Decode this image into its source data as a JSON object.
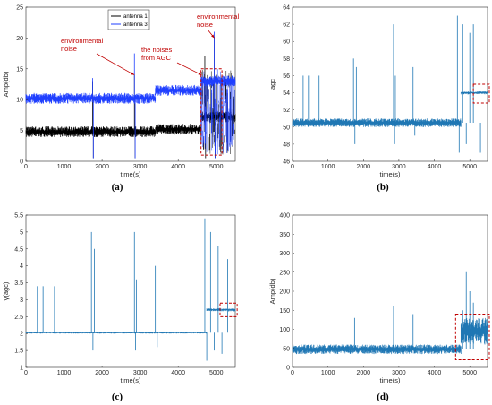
{
  "figure": {
    "panels": [
      {
        "id": "a",
        "label": "(a)"
      },
      {
        "id": "b",
        "label": "(b)"
      },
      {
        "id": "c",
        "label": "(c)"
      },
      {
        "id": "d",
        "label": "(d)"
      }
    ]
  },
  "colors": {
    "blue": "#1f3fff",
    "black": "#000000",
    "matlab_blue": "#1f77b4",
    "annotation": "#c00000",
    "axes": "#262626"
  },
  "chart_data": [
    {
      "type": "line",
      "panel": "(a)",
      "xlabel": "time(s)",
      "ylabel": "Amp(db)",
      "xlim": [
        0,
        5500
      ],
      "ylim": [
        0,
        25
      ],
      "xticks": [
        0,
        1000,
        2000,
        3000,
        4000,
        5000
      ],
      "yticks": [
        0,
        5,
        10,
        15,
        20,
        25
      ],
      "grid": false,
      "legend": {
        "placement": "top-right",
        "entries": [
          "antenna 1",
          "antenna 3"
        ]
      },
      "series": [
        {
          "name": "antenna 1",
          "color": "#000000",
          "segments": [
            {
              "x": [
                0,
                3400
              ],
              "y": 4.8
            },
            {
              "x": [
                3400,
                4600
              ],
              "y": 5.2
            },
            {
              "x": [
                4600,
                5500
              ],
              "y": 7.2
            }
          ],
          "spikes": [
            {
              "x": 1750,
              "y": 13
            },
            {
              "x": 2850,
              "y": 14
            },
            {
              "x": 4700,
              "y": 17
            },
            {
              "x": 4950,
              "y": 20
            }
          ]
        },
        {
          "name": "antenna 3",
          "color": "#1f3fff",
          "segments": [
            {
              "x": [
                0,
                3400
              ],
              "y": 10.2
            },
            {
              "x": [
                3400,
                4600
              ],
              "y": 11.5
            },
            {
              "x": [
                4600,
                5500
              ],
              "y": 13.0
            }
          ],
          "spikes": [
            {
              "x": 1750,
              "y": 13.5
            },
            {
              "x": 2850,
              "y": 17.5
            },
            {
              "x": 4950,
              "y": 21
            }
          ]
        }
      ],
      "annotations": [
        {
          "text": [
            "environmental",
            "noise"
          ],
          "target": {
            "x": 2850,
            "y": 14
          }
        },
        {
          "text": [
            "the noises",
            "from AGC"
          ],
          "target": {
            "x": 4620,
            "y": 14
          }
        },
        {
          "text": [
            "environmental",
            "noise"
          ],
          "target": {
            "x": 4950,
            "y": 20
          }
        }
      ],
      "highlight_boxes": [
        {
          "x": [
            4600,
            5150
          ],
          "y": [
            1,
            15
          ]
        }
      ]
    },
    {
      "type": "line",
      "panel": "(b)",
      "xlabel": "time(s)",
      "ylabel": "agc",
      "xlim": [
        0,
        5500
      ],
      "ylim": [
        46,
        64
      ],
      "xticks": [
        0,
        1000,
        2000,
        3000,
        4000,
        5000
      ],
      "yticks": [
        46,
        48,
        50,
        52,
        54,
        56,
        58,
        60,
        62,
        64
      ],
      "grid": false,
      "baseline": {
        "x": [
          0,
          4750
        ],
        "y": [
          50,
          51
        ]
      },
      "after": {
        "x": [
          4750,
          5500
        ],
        "y": 54
      },
      "spikes": [
        {
          "x": 300,
          "y": 56
        },
        {
          "x": 450,
          "y": 56
        },
        {
          "x": 750,
          "y": 56
        },
        {
          "x": 1720,
          "y": 58
        },
        {
          "x": 1760,
          "y": 48
        },
        {
          "x": 1800,
          "y": 57
        },
        {
          "x": 2850,
          "y": 62
        },
        {
          "x": 2880,
          "y": 48
        },
        {
          "x": 2900,
          "y": 56
        },
        {
          "x": 3400,
          "y": 57
        },
        {
          "x": 3450,
          "y": 49
        },
        {
          "x": 4650,
          "y": 63
        },
        {
          "x": 4700,
          "y": 47
        },
        {
          "x": 4800,
          "y": 62
        },
        {
          "x": 4900,
          "y": 48
        },
        {
          "x": 5000,
          "y": 61
        },
        {
          "x": 5100,
          "y": 62
        },
        {
          "x": 5300,
          "y": 47
        }
      ],
      "highlight_boxes": [
        {
          "x": [
            5100,
            5550
          ],
          "y": [
            52.8,
            55
          ]
        }
      ]
    },
    {
      "type": "line",
      "panel": "(c)",
      "xlabel": "time(s)",
      "ylabel": "γ(agc)",
      "xlim": [
        0,
        5500
      ],
      "ylim": [
        1,
        5.5
      ],
      "xticks": [
        0,
        1000,
        2000,
        3000,
        4000,
        5000
      ],
      "yticks": [
        1,
        1.5,
        2,
        2.5,
        3,
        3.5,
        4,
        4.5,
        5,
        5.5
      ],
      "grid": false,
      "baseline": {
        "x": [
          0,
          4750
        ],
        "y": [
          2,
          2.05
        ]
      },
      "after": {
        "x": [
          4750,
          5500
        ],
        "y": 2.7
      },
      "spikes": [
        {
          "x": 300,
          "y": 3.4
        },
        {
          "x": 450,
          "y": 3.4
        },
        {
          "x": 750,
          "y": 3.4
        },
        {
          "x": 1720,
          "y": 5
        },
        {
          "x": 1760,
          "y": 1.5
        },
        {
          "x": 1800,
          "y": 4.5
        },
        {
          "x": 2850,
          "y": 5
        },
        {
          "x": 2880,
          "y": 1.5
        },
        {
          "x": 2900,
          "y": 3.6
        },
        {
          "x": 3400,
          "y": 4
        },
        {
          "x": 3450,
          "y": 1.6
        },
        {
          "x": 4700,
          "y": 5.4
        },
        {
          "x": 4750,
          "y": 1.2
        },
        {
          "x": 4850,
          "y": 5
        },
        {
          "x": 4950,
          "y": 1.5
        },
        {
          "x": 5050,
          "y": 4.6
        },
        {
          "x": 5150,
          "y": 1.4
        },
        {
          "x": 5300,
          "y": 4.2
        }
      ],
      "highlight_boxes": [
        {
          "x": [
            5100,
            5550
          ],
          "y": [
            2.5,
            2.9
          ]
        }
      ]
    },
    {
      "type": "line",
      "panel": "(d)",
      "xlabel": "time(s)",
      "ylabel": "Amp(db)",
      "xlim": [
        0,
        5500
      ],
      "ylim": [
        0,
        400
      ],
      "xticks": [
        0,
        1000,
        2000,
        3000,
        4000,
        5000
      ],
      "yticks": [
        0,
        50,
        100,
        150,
        200,
        250,
        300,
        350,
        400
      ],
      "grid": false,
      "baseline": {
        "x": [
          0,
          4750
        ],
        "y": [
          35,
          60
        ]
      },
      "after": {
        "x": [
          4750,
          5500
        ],
        "y": [
          60,
          130
        ]
      },
      "spikes": [
        {
          "x": 1750,
          "y": 130
        },
        {
          "x": 2850,
          "y": 160
        },
        {
          "x": 3400,
          "y": 140
        },
        {
          "x": 4800,
          "y": 150
        },
        {
          "x": 4900,
          "y": 250
        },
        {
          "x": 5000,
          "y": 200
        },
        {
          "x": 5100,
          "y": 170
        }
      ],
      "highlight_boxes": [
        {
          "x": [
            4600,
            5550
          ],
          "y": [
            20,
            140
          ]
        }
      ]
    }
  ]
}
